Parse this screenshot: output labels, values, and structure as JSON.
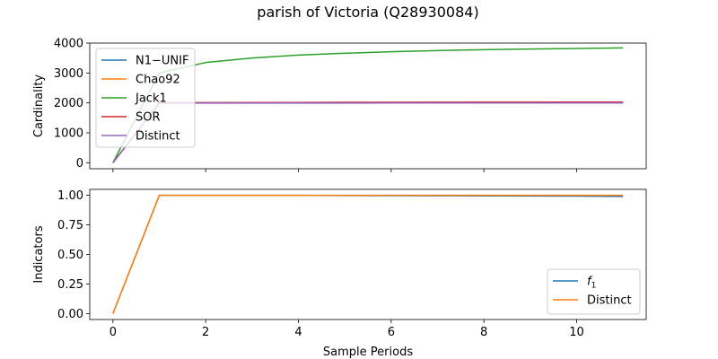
{
  "figure": {
    "title": "parish of Victoria (Q28930084)"
  },
  "chart_data": [
    {
      "type": "line",
      "ylabel": "Cardinality",
      "xlabel": "",
      "xlim": [
        -0.5,
        11.5
      ],
      "ylim": [
        -200,
        4000
      ],
      "xticks": [
        0,
        2,
        4,
        6,
        8,
        10
      ],
      "yticks": [
        0,
        1000,
        2000,
        3000,
        4000
      ],
      "show_xtick_labels": false,
      "grid": false,
      "legend_position": "upper-left",
      "x": [
        0,
        1,
        2,
        3,
        4,
        5,
        6,
        7,
        8,
        9,
        10,
        11
      ],
      "series": [
        {
          "name": "N1−UNIF",
          "color": "#1f77b4",
          "values": [
            0,
            2000,
            2005,
            2010,
            2012,
            2015,
            2018,
            2020,
            2022,
            2024,
            2026,
            2028
          ]
        },
        {
          "name": "Chao92",
          "color": "#ff7f0e",
          "values": [
            0,
            2000,
            2005,
            2010,
            2013,
            2016,
            2019,
            2021,
            2023,
            2025,
            2027,
            2029
          ]
        },
        {
          "name": "Jack1",
          "color": "#2ca02c",
          "values": [
            0,
            3000,
            3350,
            3500,
            3600,
            3660,
            3710,
            3750,
            3780,
            3800,
            3820,
            3840
          ]
        },
        {
          "name": "SOR",
          "color": "#d62728",
          "values": [
            0,
            2000,
            2004,
            2008,
            2012,
            2015,
            2018,
            2020,
            2022,
            2024,
            2026,
            2028
          ]
        },
        {
          "name": "Distinct",
          "color": "#9467bd",
          "values": [
            0,
            1990,
            1992,
            1993,
            1994,
            1995,
            1996,
            1997,
            1997,
            1998,
            1998,
            1999
          ]
        }
      ]
    },
    {
      "type": "line",
      "ylabel": "Indicators",
      "xlabel": "Sample Periods",
      "xlim": [
        -0.5,
        11.5
      ],
      "ylim": [
        -0.05,
        1.05
      ],
      "xticks": [
        0,
        2,
        4,
        6,
        8,
        10
      ],
      "yticks": [
        0.0,
        0.25,
        0.5,
        0.75,
        1.0
      ],
      "ytick_labels": [
        "0.00",
        "0.25",
        "0.50",
        "0.75",
        "1.00"
      ],
      "show_xtick_labels": true,
      "grid": false,
      "legend_position": "lower-right",
      "x": [
        0,
        1,
        2,
        3,
        4,
        5,
        6,
        7,
        8,
        9,
        10,
        11
      ],
      "series": [
        {
          "name": "f",
          "name_subscript": "1",
          "color": "#1f77b4",
          "values": [
            0,
            1.0,
            1.0,
            1.0,
            1.0,
            0.998,
            0.997,
            0.996,
            0.995,
            0.994,
            0.993,
            0.99
          ]
        },
        {
          "name": "Distinct",
          "color": "#ff7f0e",
          "values": [
            0,
            1.0,
            1.0,
            1.0,
            1.0,
            1.0,
            1.0,
            1.0,
            1.0,
            1.0,
            1.0,
            1.0
          ]
        }
      ]
    }
  ]
}
